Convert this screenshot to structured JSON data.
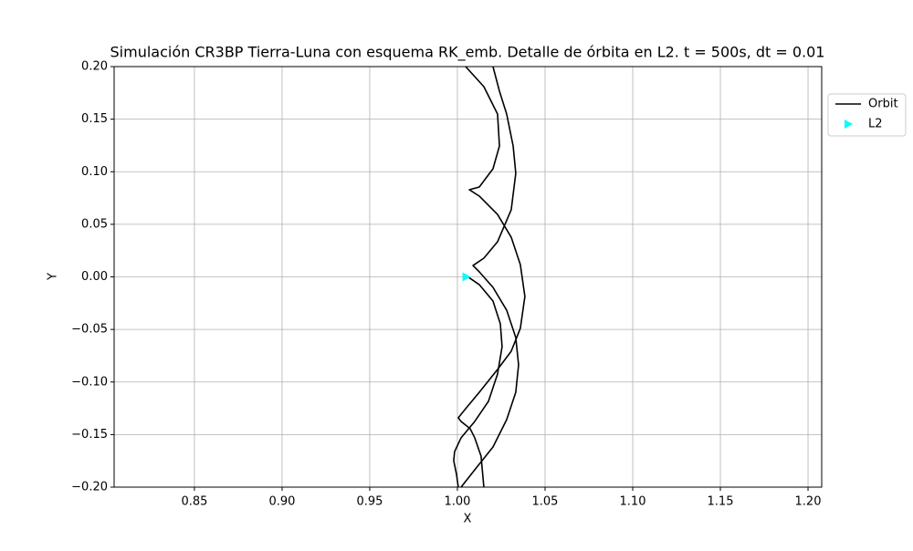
{
  "chart_data": {
    "type": "line",
    "title": "Simulación CR3BP Tierra-Luna con esquema RK_emb. Detalle de órbita en L2. t = 500s, dt = 0.01",
    "xlabel": "X",
    "ylabel": "Y",
    "xlim": [
      0.8042,
      1.2078
    ],
    "ylim": [
      -0.2,
      0.2
    ],
    "xticks": [
      0.85,
      {
        "value": 0.9,
        "label": "0.90"
      },
      0.95,
      {
        "value": 1,
        "label": "1.00"
      },
      1.05,
      {
        "value": 1.1,
        "label": "1.10"
      },
      1.15,
      {
        "value": 1.2,
        "label": "1.20"
      }
    ],
    "yticks": [
      {
        "value": -0.2,
        "label": "−0.20"
      },
      {
        "value": -0.15,
        "label": "−0.15"
      },
      {
        "value": -0.1,
        "label": "−0.10"
      },
      {
        "value": -0.05,
        "label": "−0.05"
      },
      {
        "value": 0,
        "label": "0.00"
      },
      0.05,
      {
        "value": 0.1,
        "label": "0.10"
      },
      0.15,
      {
        "value": 0.2,
        "label": "0.20"
      }
    ],
    "grid": true,
    "legend": "right",
    "series": [
      {
        "name": "Orbit",
        "color": "#000000",
        "marker": "none",
        "x": [
          1.0057,
          1.0125,
          1.0203,
          1.0245,
          1.0255,
          1.0229,
          1.0177,
          1.0099,
          1.0021,
          0.9984,
          0.9979,
          0.9995,
          1.0005,
          null,
          1.0047,
          1.0151,
          1.0229,
          1.024,
          1.0203,
          1.0125,
          1.0068,
          1.0125,
          1.0229,
          1.0307,
          1.0359,
          1.0385,
          1.0359,
          1.0307,
          1.0229,
          1.0125,
          1.0047,
          1.0005,
          1.0021,
          1.0073,
          1.0099,
          1.0135,
          1.0151,
          null,
          1.0203,
          1.024,
          1.0281,
          1.0318,
          1.0333,
          1.0307,
          1.0229,
          1.0151,
          1.0089,
          1.0125,
          1.0203,
          1.0281,
          1.0333,
          1.0349,
          1.0333,
          1.0281,
          1.0203,
          1.0099,
          1.0021
        ],
        "values": [
          0.0004,
          -0.0074,
          -0.023,
          -0.0447,
          -0.0664,
          -0.0924,
          -0.1184,
          -0.1375,
          -0.1531,
          -0.1662,
          -0.1748,
          -0.1879,
          -0.2,
          null,
          0.2,
          0.1809,
          0.1549,
          0.1245,
          0.1028,
          0.0855,
          0.0829,
          0.0768,
          0.0594,
          0.0377,
          0.0117,
          -0.0187,
          -0.049,
          -0.0707,
          -0.0881,
          -0.1098,
          -0.1254,
          -0.1341,
          -0.1375,
          -0.1445,
          -0.1531,
          -0.1705,
          -0.2,
          null,
          0.2,
          0.1766,
          0.1549,
          0.1245,
          0.0985,
          0.0638,
          0.0334,
          0.0178,
          0.0108,
          0.0048,
          -0.01,
          -0.0317,
          -0.0577,
          -0.0837,
          -0.1098,
          -0.1358,
          -0.1618,
          -0.1835,
          -0.2
        ]
      },
      {
        "name": "L2",
        "color": "#00ffff",
        "marker": "triangle-right",
        "x": [
          1.005
        ],
        "values": [
          0
        ]
      }
    ]
  }
}
